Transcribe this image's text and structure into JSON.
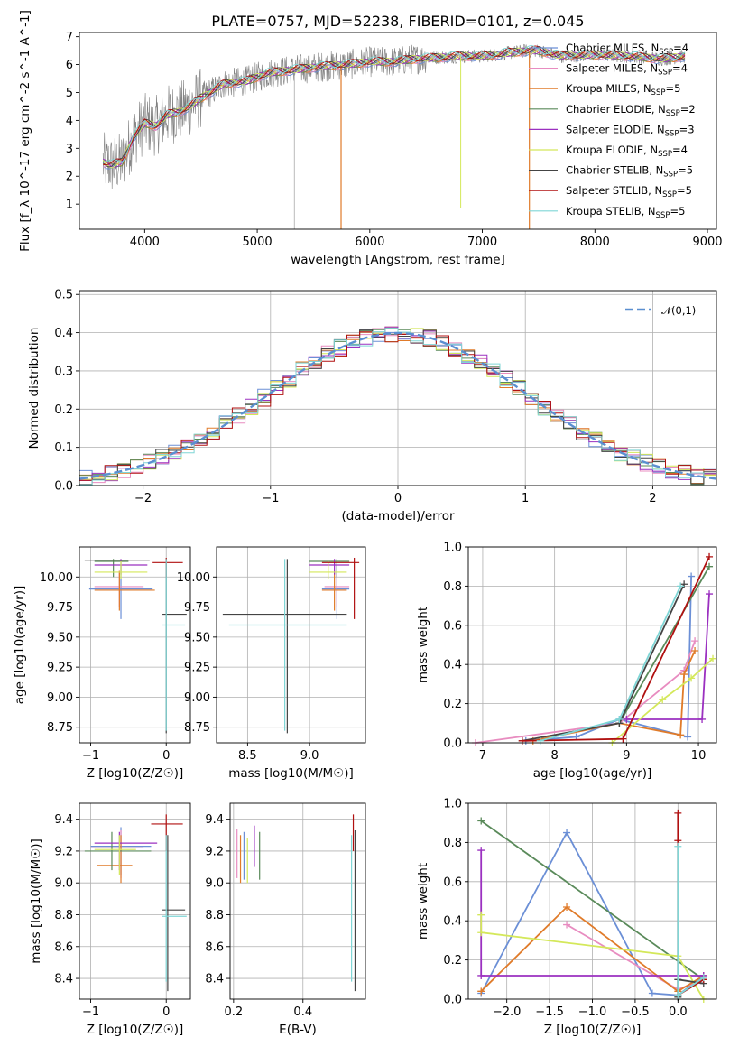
{
  "colors": {
    "chabrier_miles": "#6b8fd6",
    "salpeter_miles": "#e88cc0",
    "kroupa_miles": "#e07b2a",
    "chabrier_elodie": "#5a8a5a",
    "salpeter_elodie": "#9b30c0",
    "kroupa_elodie": "#d4e85a",
    "chabrier_stelib": "#444444",
    "salpeter_stelib": "#b01010",
    "kroupa_stelib": "#7fd6d6",
    "data_spectrum": "#808080"
  },
  "chart_data": [
    {
      "id": "spectrum",
      "type": "line",
      "title": "PLATE=0757, MJD=52238, FIBERID=0101, z=0.045",
      "xlabel": "wavelength [Angstrom, rest frame]",
      "ylabel": "Flux [f_λ 10^-17 erg cm^-2 s^-1 A^-1]",
      "xlim": [
        3420,
        9080
      ],
      "ylim": [
        0.1,
        7.15
      ],
      "xticks": [
        4000,
        5000,
        6000,
        7000,
        8000,
        9000
      ],
      "yticks": [
        1,
        2,
        3,
        4,
        5,
        6,
        7
      ],
      "legend_position": "right",
      "legend": [
        "Chabrier MILES, NSSP=4",
        "Salpeter MILES, NSSP=4",
        "Kroupa MILES, NSSP=5",
        "Chabrier ELODIE, NSSP=2",
        "Salpeter ELODIE, NSSP=3",
        "Kroupa ELODIE, NSSP=4",
        "Chabrier STELIB, NSSP=5",
        "Salpeter STELIB, NSSP=5",
        "Kroupa STELIB, NSSP=5"
      ],
      "continuum": [
        [
          3630,
          2.5
        ],
        [
          3700,
          2.4
        ],
        [
          3800,
          2.5
        ],
        [
          3900,
          3.4
        ],
        [
          4000,
          3.9
        ],
        [
          4100,
          3.8
        ],
        [
          4200,
          4.2
        ],
        [
          4300,
          4.3
        ],
        [
          4400,
          4.5
        ],
        [
          4500,
          4.8
        ],
        [
          4700,
          5.3
        ],
        [
          4900,
          5.4
        ],
        [
          5100,
          5.7
        ],
        [
          5300,
          5.8
        ],
        [
          5500,
          5.9
        ],
        [
          5800,
          6.0
        ],
        [
          6000,
          6.1
        ],
        [
          6200,
          6.1
        ],
        [
          6400,
          6.2
        ],
        [
          6600,
          6.25
        ],
        [
          6800,
          6.3
        ],
        [
          7000,
          6.3
        ],
        [
          7200,
          6.4
        ],
        [
          7400,
          6.5
        ],
        [
          7500,
          6.5
        ],
        [
          7700,
          6.3
        ],
        [
          8000,
          6.35
        ],
        [
          8300,
          6.3
        ],
        [
          8600,
          6.2
        ],
        [
          8800,
          6.3
        ]
      ],
      "grid": false
    },
    {
      "id": "residuals",
      "type": "histogram",
      "xlabel": "(data-model)/error",
      "ylabel": "Normed distribution",
      "xlim": [
        -2.5,
        2.5
      ],
      "ylim": [
        0,
        0.51
      ],
      "xticks": [
        -2,
        -1,
        0,
        1,
        2
      ],
      "yticks": [
        0.0,
        0.1,
        0.2,
        0.3,
        0.4,
        0.5
      ],
      "legend": [
        "𝒩(0,1)"
      ],
      "legend_position": "top-right",
      "bin_width": 0.1,
      "grid": true
    },
    {
      "id": "age_vs_Z",
      "type": "errorbar",
      "xlabel": "Z [log10(Z/Z☉)]",
      "ylabel": "age  [log10(age/yr)]",
      "xlim": [
        -1.15,
        0.32
      ],
      "ylim": [
        8.62,
        10.25
      ],
      "xticks": [
        -1,
        0
      ],
      "yticks": [
        8.75,
        9.0,
        9.25,
        9.5,
        9.75,
        10.0
      ],
      "grid": true,
      "points": [
        {
          "series": "chabrier_miles",
          "x": -0.6,
          "y": 9.9,
          "xlo": -1.02,
          "xhi": -0.18,
          "ylo": 9.65,
          "yhi": 10.1
        },
        {
          "series": "salpeter_miles",
          "x": -0.62,
          "y": 9.92,
          "xlo": -0.95,
          "xhi": -0.3,
          "ylo": 9.75,
          "yhi": 10.05
        },
        {
          "series": "kroupa_miles",
          "x": -0.62,
          "y": 9.89,
          "xlo": -0.95,
          "xhi": -0.15,
          "ylo": 9.72,
          "yhi": 10.05
        },
        {
          "series": "chabrier_elodie",
          "x": -0.7,
          "y": 10.13,
          "xlo": -0.95,
          "xhi": -0.5,
          "ylo": 10.0,
          "yhi": 10.15
        },
        {
          "series": "salpeter_elodie",
          "x": -0.6,
          "y": 10.1,
          "xlo": -0.95,
          "xhi": -0.25,
          "ylo": 10.02,
          "yhi": 10.15
        },
        {
          "series": "kroupa_elodie",
          "x": -0.6,
          "y": 10.04,
          "xlo": -0.95,
          "xhi": -0.25,
          "ylo": 9.98,
          "yhi": 10.13
        },
        {
          "series": "chabrier_stelib",
          "x": 0.0,
          "y": 9.69,
          "xlo": -0.05,
          "xhi": 0.27,
          "ylo": 8.7,
          "yhi": 10.15
        },
        {
          "series": "salpeter_stelib",
          "x": 0.0,
          "y": 10.12,
          "xlo": -0.18,
          "xhi": 0.22,
          "ylo": 10.0,
          "yhi": 10.16
        },
        {
          "series": "kroupa_stelib",
          "x": 0.0,
          "y": 9.6,
          "xlo": -0.05,
          "xhi": 0.25,
          "ylo": 8.72,
          "yhi": 10.15
        },
        {
          "series": "chabrier_stelib",
          "x": -0.6,
          "y": 10.14,
          "xlo": -1.08,
          "xhi": -0.22,
          "ylo": 10.14,
          "yhi": 10.14
        }
      ]
    },
    {
      "id": "age_vs_mass",
      "type": "errorbar",
      "xlabel": "mass [log10(M/M☉)]",
      "ylabel": "",
      "xlim": [
        8.25,
        9.45
      ],
      "ylim": [
        8.62,
        10.25
      ],
      "xticks": [
        8.5,
        9.0
      ],
      "yticks": [
        8.75,
        9.0,
        9.25,
        9.5,
        9.75,
        10.0
      ],
      "grid": true,
      "points": [
        {
          "series": "chabrier_miles",
          "x": 9.22,
          "y": 9.9,
          "xlo": 9.1,
          "xhi": 9.32,
          "ylo": 9.65,
          "yhi": 10.1
        },
        {
          "series": "salpeter_miles",
          "x": 9.22,
          "y": 9.92,
          "xlo": 9.12,
          "xhi": 9.32,
          "ylo": 9.75,
          "yhi": 10.05
        },
        {
          "series": "kroupa_miles",
          "x": 9.2,
          "y": 9.89,
          "xlo": 9.1,
          "xhi": 9.3,
          "ylo": 9.72,
          "yhi": 10.05
        },
        {
          "series": "chabrier_elodie",
          "x": 9.22,
          "y": 10.13,
          "xlo": 9.0,
          "xhi": 9.32,
          "ylo": 10.0,
          "yhi": 10.15
        },
        {
          "series": "salpeter_elodie",
          "x": 9.2,
          "y": 10.1,
          "xlo": 9.0,
          "xhi": 9.32,
          "ylo": 10.02,
          "yhi": 10.15
        },
        {
          "series": "kroupa_elodie",
          "x": 9.15,
          "y": 10.04,
          "xlo": 9.0,
          "xhi": 9.3,
          "ylo": 9.98,
          "yhi": 10.13
        },
        {
          "series": "chabrier_stelib",
          "x": 8.82,
          "y": 9.69,
          "xlo": 8.3,
          "xhi": 9.3,
          "ylo": 8.7,
          "yhi": 10.15
        },
        {
          "series": "salpeter_stelib",
          "x": 9.36,
          "y": 10.12,
          "xlo": 9.1,
          "xhi": 9.4,
          "ylo": 9.65,
          "yhi": 10.16
        },
        {
          "series": "kroupa_stelib",
          "x": 8.8,
          "y": 9.6,
          "xlo": 8.35,
          "xhi": 9.3,
          "ylo": 8.72,
          "yhi": 10.15
        }
      ]
    },
    {
      "id": "massweight_vs_age",
      "type": "line",
      "xlabel": "age  [log10(age/yr)]",
      "ylabel": "mass weight",
      "xlim": [
        6.8,
        10.25
      ],
      "ylim": [
        0,
        1.0
      ],
      "xticks": [
        7,
        8,
        9,
        10
      ],
      "yticks": [
        0.0,
        0.2,
        0.4,
        0.6,
        0.8,
        1.0
      ],
      "grid": true,
      "series": [
        {
          "series": "chabrier_miles",
          "points": [
            [
              7.6,
              0.01
            ],
            [
              8.3,
              0.03
            ],
            [
              8.9,
              0.12
            ],
            [
              9.85,
              0.03
            ],
            [
              9.9,
              0.85
            ]
          ]
        },
        {
          "series": "salpeter_miles",
          "points": [
            [
              6.9,
              0.0
            ],
            [
              8.9,
              0.1
            ],
            [
              9.8,
              0.37
            ],
            [
              9.95,
              0.52
            ]
          ]
        },
        {
          "series": "kroupa_miles",
          "points": [
            [
              7.7,
              0.01
            ],
            [
              8.9,
              0.1
            ],
            [
              9.75,
              0.04
            ],
            [
              9.8,
              0.35
            ],
            [
              9.95,
              0.47
            ]
          ]
        },
        {
          "series": "chabrier_elodie",
          "points": [
            [
              8.9,
              0.1
            ],
            [
              10.15,
              0.9
            ]
          ]
        },
        {
          "series": "salpeter_elodie",
          "points": [
            [
              9.0,
              0.12
            ],
            [
              10.05,
              0.12
            ],
            [
              10.15,
              0.76
            ]
          ]
        },
        {
          "series": "kroupa_elodie",
          "points": [
            [
              8.8,
              0.0
            ],
            [
              9.5,
              0.22
            ],
            [
              9.9,
              0.33
            ],
            [
              10.2,
              0.43
            ]
          ]
        },
        {
          "series": "chabrier_stelib",
          "points": [
            [
              7.55,
              0.01
            ],
            [
              8.9,
              0.1
            ],
            [
              9.8,
              0.81
            ]
          ]
        },
        {
          "series": "salpeter_stelib",
          "points": [
            [
              7.55,
              0.01
            ],
            [
              8.95,
              0.02
            ],
            [
              10.15,
              0.95
            ]
          ]
        },
        {
          "series": "kroupa_stelib",
          "points": [
            [
              7.8,
              0.01
            ],
            [
              8.9,
              0.12
            ],
            [
              9.75,
              0.8
            ]
          ]
        }
      ]
    },
    {
      "id": "mass_vs_Z",
      "type": "errorbar",
      "xlabel": "Z [log10(Z/Z☉)]",
      "ylabel": "mass [log10(M/M☉)]",
      "xlim": [
        -1.15,
        0.32
      ],
      "ylim": [
        8.27,
        9.5
      ],
      "xticks": [
        -1,
        0
      ],
      "yticks": [
        8.4,
        8.6,
        8.8,
        9.0,
        9.2,
        9.4
      ],
      "grid": true,
      "points": [
        {
          "series": "chabrier_miles",
          "x": -0.6,
          "y": 9.23,
          "xlo": -1.0,
          "xhi": -0.2,
          "ylo": 9.05,
          "yhi": 9.35
        },
        {
          "series": "salpeter_miles",
          "x": -0.6,
          "y": 9.22,
          "xlo": -1.0,
          "xhi": -0.3,
          "ylo": 9.03,
          "yhi": 9.33
        },
        {
          "series": "kroupa_miles",
          "x": -0.6,
          "y": 9.11,
          "xlo": -0.92,
          "xhi": -0.45,
          "ylo": 9.0,
          "yhi": 9.3
        },
        {
          "series": "chabrier_elodie",
          "x": -0.72,
          "y": 9.2,
          "xlo": -1.08,
          "xhi": -0.2,
          "ylo": 9.08,
          "yhi": 9.32
        },
        {
          "series": "salpeter_elodie",
          "x": -0.62,
          "y": 9.25,
          "xlo": -0.95,
          "xhi": -0.12,
          "ylo": 9.08,
          "yhi": 9.32
        },
        {
          "series": "kroupa_elodie",
          "x": -0.62,
          "y": 9.21,
          "xlo": -0.95,
          "xhi": -0.4,
          "ylo": 9.05,
          "yhi": 9.3
        },
        {
          "series": "chabrier_stelib",
          "x": 0.02,
          "y": 8.83,
          "xlo": -0.05,
          "xhi": 0.25,
          "ylo": 8.32,
          "yhi": 9.3
        },
        {
          "series": "salpeter_stelib",
          "x": 0.0,
          "y": 9.37,
          "xlo": -0.2,
          "xhi": 0.22,
          "ylo": 9.2,
          "yhi": 9.43
        },
        {
          "series": "kroupa_stelib",
          "x": 0.0,
          "y": 8.79,
          "xlo": -0.05,
          "xhi": 0.27,
          "ylo": 8.38,
          "yhi": 9.3
        }
      ]
    },
    {
      "id": "mass_vs_ebv",
      "type": "errorbar",
      "xlabel": "E(B-V)",
      "ylabel": "",
      "xlim": [
        0.19,
        0.58
      ],
      "ylim": [
        8.27,
        9.5
      ],
      "xticks": [
        0.2,
        0.4
      ],
      "yticks": [
        8.4,
        8.6,
        8.8,
        9.0,
        9.2,
        9.4
      ],
      "grid": true,
      "points": [
        {
          "series": "chabrier_miles",
          "x": 0.23,
          "y": 9.22,
          "xlo": 0.23,
          "xhi": 0.23,
          "ylo": 9.02,
          "yhi": 9.32
        },
        {
          "series": "salpeter_miles",
          "x": 0.21,
          "y": 9.21,
          "xlo": 0.21,
          "xhi": 0.21,
          "ylo": 9.03,
          "yhi": 9.34
        },
        {
          "series": "kroupa_miles",
          "x": 0.22,
          "y": 9.15,
          "xlo": 0.22,
          "xhi": 0.22,
          "ylo": 9.0,
          "yhi": 9.3
        },
        {
          "series": "chabrier_elodie",
          "x": 0.275,
          "y": 9.2,
          "xlo": 0.275,
          "xhi": 0.275,
          "ylo": 9.02,
          "yhi": 9.32
        },
        {
          "series": "salpeter_elodie",
          "x": 0.26,
          "y": 9.25,
          "xlo": 0.26,
          "xhi": 0.26,
          "ylo": 9.1,
          "yhi": 9.36
        },
        {
          "series": "kroupa_elodie",
          "x": 0.24,
          "y": 9.2,
          "xlo": 0.24,
          "xhi": 0.24,
          "ylo": 9.0,
          "yhi": 9.28
        },
        {
          "series": "chabrier_stelib",
          "x": 0.55,
          "y": 8.8,
          "xlo": 0.55,
          "xhi": 0.55,
          "ylo": 8.32,
          "yhi": 9.33
        },
        {
          "series": "salpeter_stelib",
          "x": 0.545,
          "y": 9.35,
          "xlo": 0.545,
          "xhi": 0.545,
          "ylo": 9.2,
          "yhi": 9.43
        },
        {
          "series": "kroupa_stelib",
          "x": 0.54,
          "y": 8.8,
          "xlo": 0.54,
          "xhi": 0.54,
          "ylo": 8.38,
          "yhi": 9.3
        }
      ]
    },
    {
      "id": "massweight_vs_Z",
      "type": "line",
      "xlabel": "Z [log10(Z/Z☉)]",
      "ylabel": "mass weight",
      "xlim": [
        -2.45,
        0.45
      ],
      "ylim": [
        0,
        1.0
      ],
      "xticks": [
        -2.0,
        -1.5,
        -1.0,
        -0.5,
        0.0
      ],
      "yticks": [
        0.0,
        0.2,
        0.4,
        0.6,
        0.8,
        1.0
      ],
      "grid": true,
      "series": [
        {
          "series": "chabrier_miles",
          "points": [
            [
              -2.3,
              0.03
            ],
            [
              -1.3,
              0.85
            ],
            [
              -0.3,
              0.03
            ],
            [
              0.0,
              0.02
            ],
            [
              0.3,
              0.12
            ]
          ]
        },
        {
          "series": "salpeter_miles",
          "points": [
            [
              -1.3,
              0.38
            ],
            [
              0.0,
              0.05
            ],
            [
              0.3,
              0.1
            ]
          ]
        },
        {
          "series": "kroupa_miles",
          "points": [
            [
              -2.3,
              0.04
            ],
            [
              -1.3,
              0.47
            ],
            [
              0.0,
              0.04
            ],
            [
              0.3,
              0.12
            ]
          ]
        },
        {
          "series": "chabrier_elodie",
          "points": [
            [
              -2.3,
              0.91
            ],
            [
              0.3,
              0.1
            ]
          ]
        },
        {
          "series": "salpeter_elodie",
          "points": [
            [
              -2.3,
              0.76
            ],
            [
              -2.3,
              0.12
            ],
            [
              0.3,
              0.12
            ]
          ]
        },
        {
          "series": "kroupa_elodie",
          "points": [
            [
              -2.3,
              0.43
            ],
            [
              -2.3,
              0.34
            ],
            [
              0.0,
              0.22
            ],
            [
              0.3,
              0.0
            ]
          ]
        },
        {
          "series": "chabrier_stelib",
          "points": [
            [
              0.0,
              0.01
            ],
            [
              0.0,
              0.1
            ],
            [
              0.3,
              0.08
            ]
          ]
        },
        {
          "series": "salpeter_stelib",
          "points": [
            [
              0.0,
              0.95
            ],
            [
              0.0,
              0.81
            ],
            [
              0.0,
              0.02
            ],
            [
              0.3,
              0.1
            ]
          ]
        },
        {
          "series": "kroupa_stelib",
          "points": [
            [
              0.0,
              0.78
            ],
            [
              0.0,
              0.02
            ],
            [
              0.3,
              0.11
            ]
          ]
        }
      ]
    }
  ]
}
